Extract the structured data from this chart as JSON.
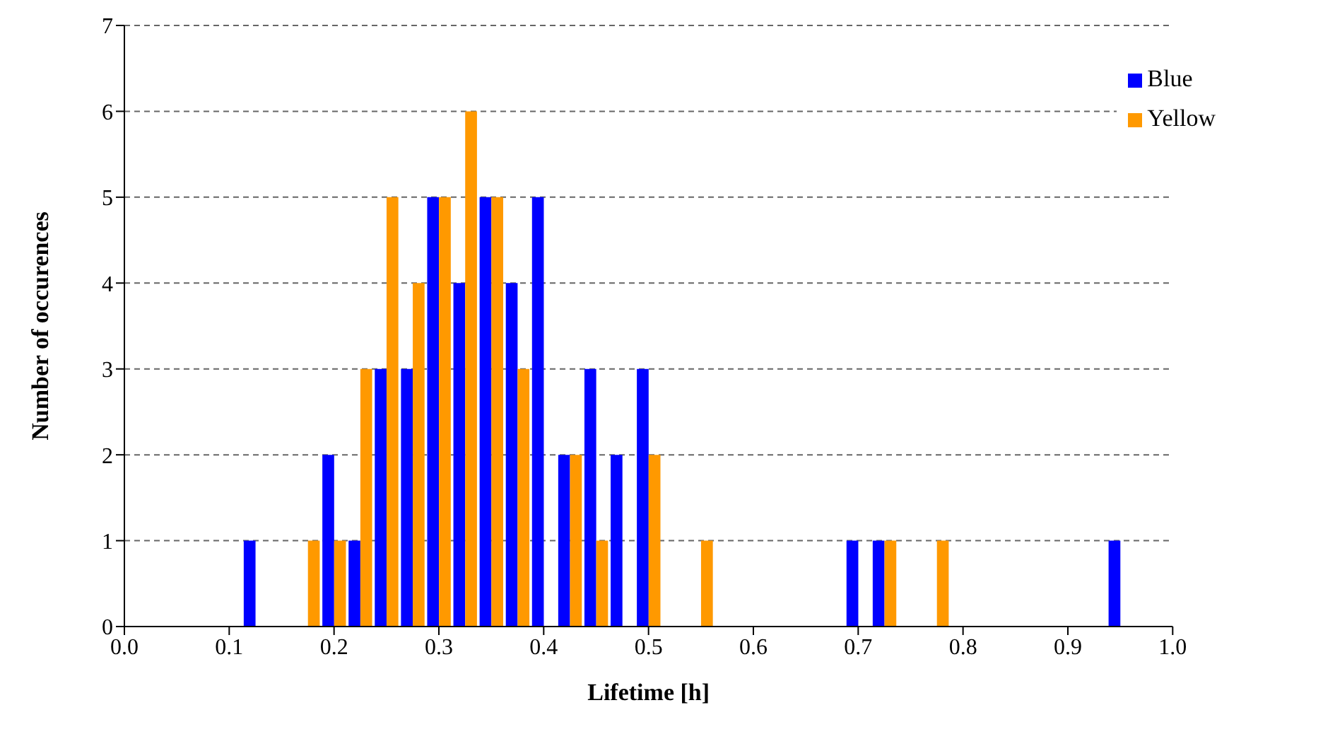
{
  "chart_data": {
    "type": "bar",
    "xlabel": "Lifetime [h]",
    "ylabel": "Number of occurences",
    "x": [
      0.125,
      0.175,
      0.2,
      0.225,
      0.25,
      0.275,
      0.3,
      0.325,
      0.35,
      0.375,
      0.4,
      0.425,
      0.45,
      0.475,
      0.5,
      0.55,
      0.7,
      0.725,
      0.775,
      0.95
    ],
    "series": [
      {
        "name": "Blue",
        "color": "#0000ff",
        "values": [
          1,
          0,
          2,
          1,
          3,
          3,
          5,
          4,
          5,
          4,
          5,
          2,
          3,
          2,
          3,
          0,
          1,
          1,
          0,
          1
        ]
      },
      {
        "name": "Yellow",
        "color": "#ff9900",
        "values": [
          0,
          1,
          1,
          3,
          5,
          4,
          5,
          6,
          5,
          3,
          0,
          2,
          1,
          0,
          2,
          1,
          0,
          1,
          1,
          0
        ]
      }
    ],
    "xlim": [
      0,
      1
    ],
    "xticks": [
      {
        "value": 0,
        "label": "0.0"
      },
      0.1,
      0.2,
      0.3,
      0.4,
      0.5,
      0.6,
      0.7,
      0.8,
      0.9,
      {
        "value": 1,
        "label": "1.0"
      }
    ],
    "ylim": [
      0,
      7
    ],
    "yticks": [
      0,
      1,
      2,
      3,
      4,
      5,
      6,
      7
    ],
    "grid": "y",
    "legend": "top right"
  }
}
